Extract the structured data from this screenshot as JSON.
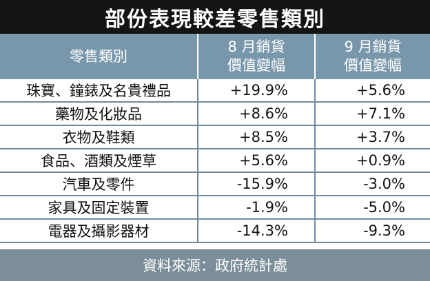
{
  "title": "部份表現較差零售類別",
  "header": {
    "category": "零售類別",
    "aug_line1": "8 月銷貨",
    "aug_line2": "價值變幅",
    "sep_line1": "9 月銷貨",
    "sep_line2": "價值變幅"
  },
  "rows": [
    {
      "category": "珠寶、鐘錶及名貴禮品",
      "aug": "+19.9%",
      "sep": "+5.6%"
    },
    {
      "category": "藥物及化妝品",
      "aug": "+8.6%",
      "sep": "+7.1%"
    },
    {
      "category": "衣物及鞋類",
      "aug": "+8.5%",
      "sep": "+3.7%"
    },
    {
      "category": "食品、酒類及煙草",
      "aug": "+5.6%",
      "sep": "+0.9%"
    },
    {
      "category": "汽車及零件",
      "aug": "-15.9%",
      "sep": "-3.0%"
    },
    {
      "category": "家具及固定裝置",
      "aug": "-1.9%",
      "sep": "-5.0%"
    },
    {
      "category": "電器及攝影器材",
      "aug": "-14.3%",
      "sep": "-9.3%"
    }
  ],
  "source": "資料來源：政府統計處",
  "colors": {
    "title_bg": "#141414",
    "header_bg": "#7897ab",
    "row_divider": "#6e8aa0",
    "footer_bg": "#7c8e99"
  }
}
